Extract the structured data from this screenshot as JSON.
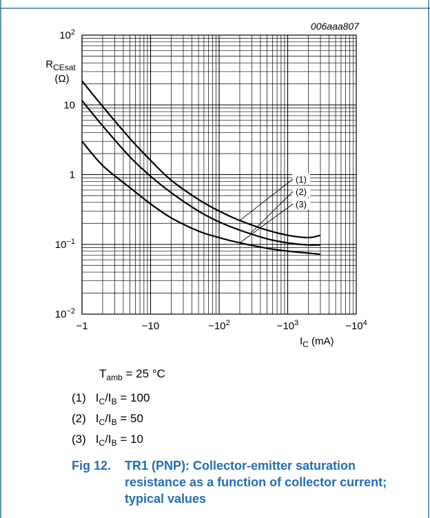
{
  "colors": {
    "frame": "#2a7f9a",
    "caption": "#1f6fb5",
    "ink": "#000000"
  },
  "chart_data": {
    "type": "line",
    "code": "006aaa807",
    "xscale": "log",
    "yscale": "log",
    "xlim": [
      -1,
      -10000
    ],
    "ylim": [
      0.01,
      100
    ],
    "x_ticks": [
      {
        "value": -1,
        "base": "−1",
        "exp": ""
      },
      {
        "value": -10,
        "base": "−10",
        "exp": ""
      },
      {
        "value": -100,
        "base": "−10",
        "exp": "2"
      },
      {
        "value": -1000,
        "base": "−10",
        "exp": "3"
      },
      {
        "value": -10000,
        "base": "−10",
        "exp": "4"
      }
    ],
    "y_ticks": [
      {
        "value": 100,
        "base": "10",
        "exp": "2"
      },
      {
        "value": 10,
        "base": "10",
        "exp": ""
      },
      {
        "value": 1,
        "base": "1",
        "exp": ""
      },
      {
        "value": 0.1,
        "base": "10",
        "exp": "−1"
      },
      {
        "value": 0.01,
        "base": "10",
        "exp": "−2"
      }
    ],
    "ylabel_main": "R",
    "ylabel_sub": "CEsat",
    "ylabel_unit": "(Ω)",
    "xlabel_main": "I",
    "xlabel_sub": "C",
    "xlabel_unit": " (mA)",
    "grid": true,
    "series": [
      {
        "name": "(1)",
        "x": [
          -1,
          -2,
          -5,
          -10,
          -20,
          -50,
          -100,
          -200,
          -500,
          -1000,
          -2000,
          -3000
        ],
        "y": [
          22,
          9.5,
          3.3,
          1.6,
          0.83,
          0.44,
          0.3,
          0.22,
          0.16,
          0.135,
          0.125,
          0.135
        ]
      },
      {
        "name": "(2)",
        "x": [
          -1,
          -2,
          -5,
          -10,
          -20,
          -50,
          -100,
          -200,
          -500,
          -1000,
          -2000,
          -3000
        ],
        "y": [
          11.5,
          5,
          1.8,
          0.95,
          0.55,
          0.3,
          0.21,
          0.16,
          0.12,
          0.105,
          0.098,
          0.098
        ]
      },
      {
        "name": "(3)",
        "x": [
          -1,
          -2,
          -5,
          -10,
          -20,
          -50,
          -100,
          -200,
          -500,
          -1000,
          -2000,
          -3000
        ],
        "y": [
          3,
          1.35,
          0.65,
          0.38,
          0.24,
          0.155,
          0.125,
          0.105,
          0.088,
          0.08,
          0.075,
          0.072
        ]
      }
    ],
    "callouts": [
      {
        "label": "(1)",
        "target_x": -200,
        "target_y": 0.22
      },
      {
        "label": "(2)",
        "target_x": -280,
        "target_y": 0.14
      },
      {
        "label": "(3)",
        "target_x": -200,
        "target_y": 0.105
      }
    ]
  },
  "conditions": {
    "t_main": "T",
    "t_sub": "amb",
    "t_rest": " = 25 °C",
    "items": [
      {
        "num": "(1)",
        "a": "I",
        "a_sub": "C",
        "b": "/I",
        "b_sub": "B",
        "val": " = 100"
      },
      {
        "num": "(2)",
        "a": "I",
        "a_sub": "C",
        "b": "/I",
        "b_sub": "B",
        "val": " = 50"
      },
      {
        "num": "(3)",
        "a": "I",
        "a_sub": "C",
        "b": "/I",
        "b_sub": "B",
        "val": " = 10"
      }
    ]
  },
  "caption": {
    "number": "Fig 12.",
    "line1": "TR1 (PNP): Collector-emitter saturation",
    "line2": "resistance as a function of collector current;",
    "line3": "typical values"
  }
}
